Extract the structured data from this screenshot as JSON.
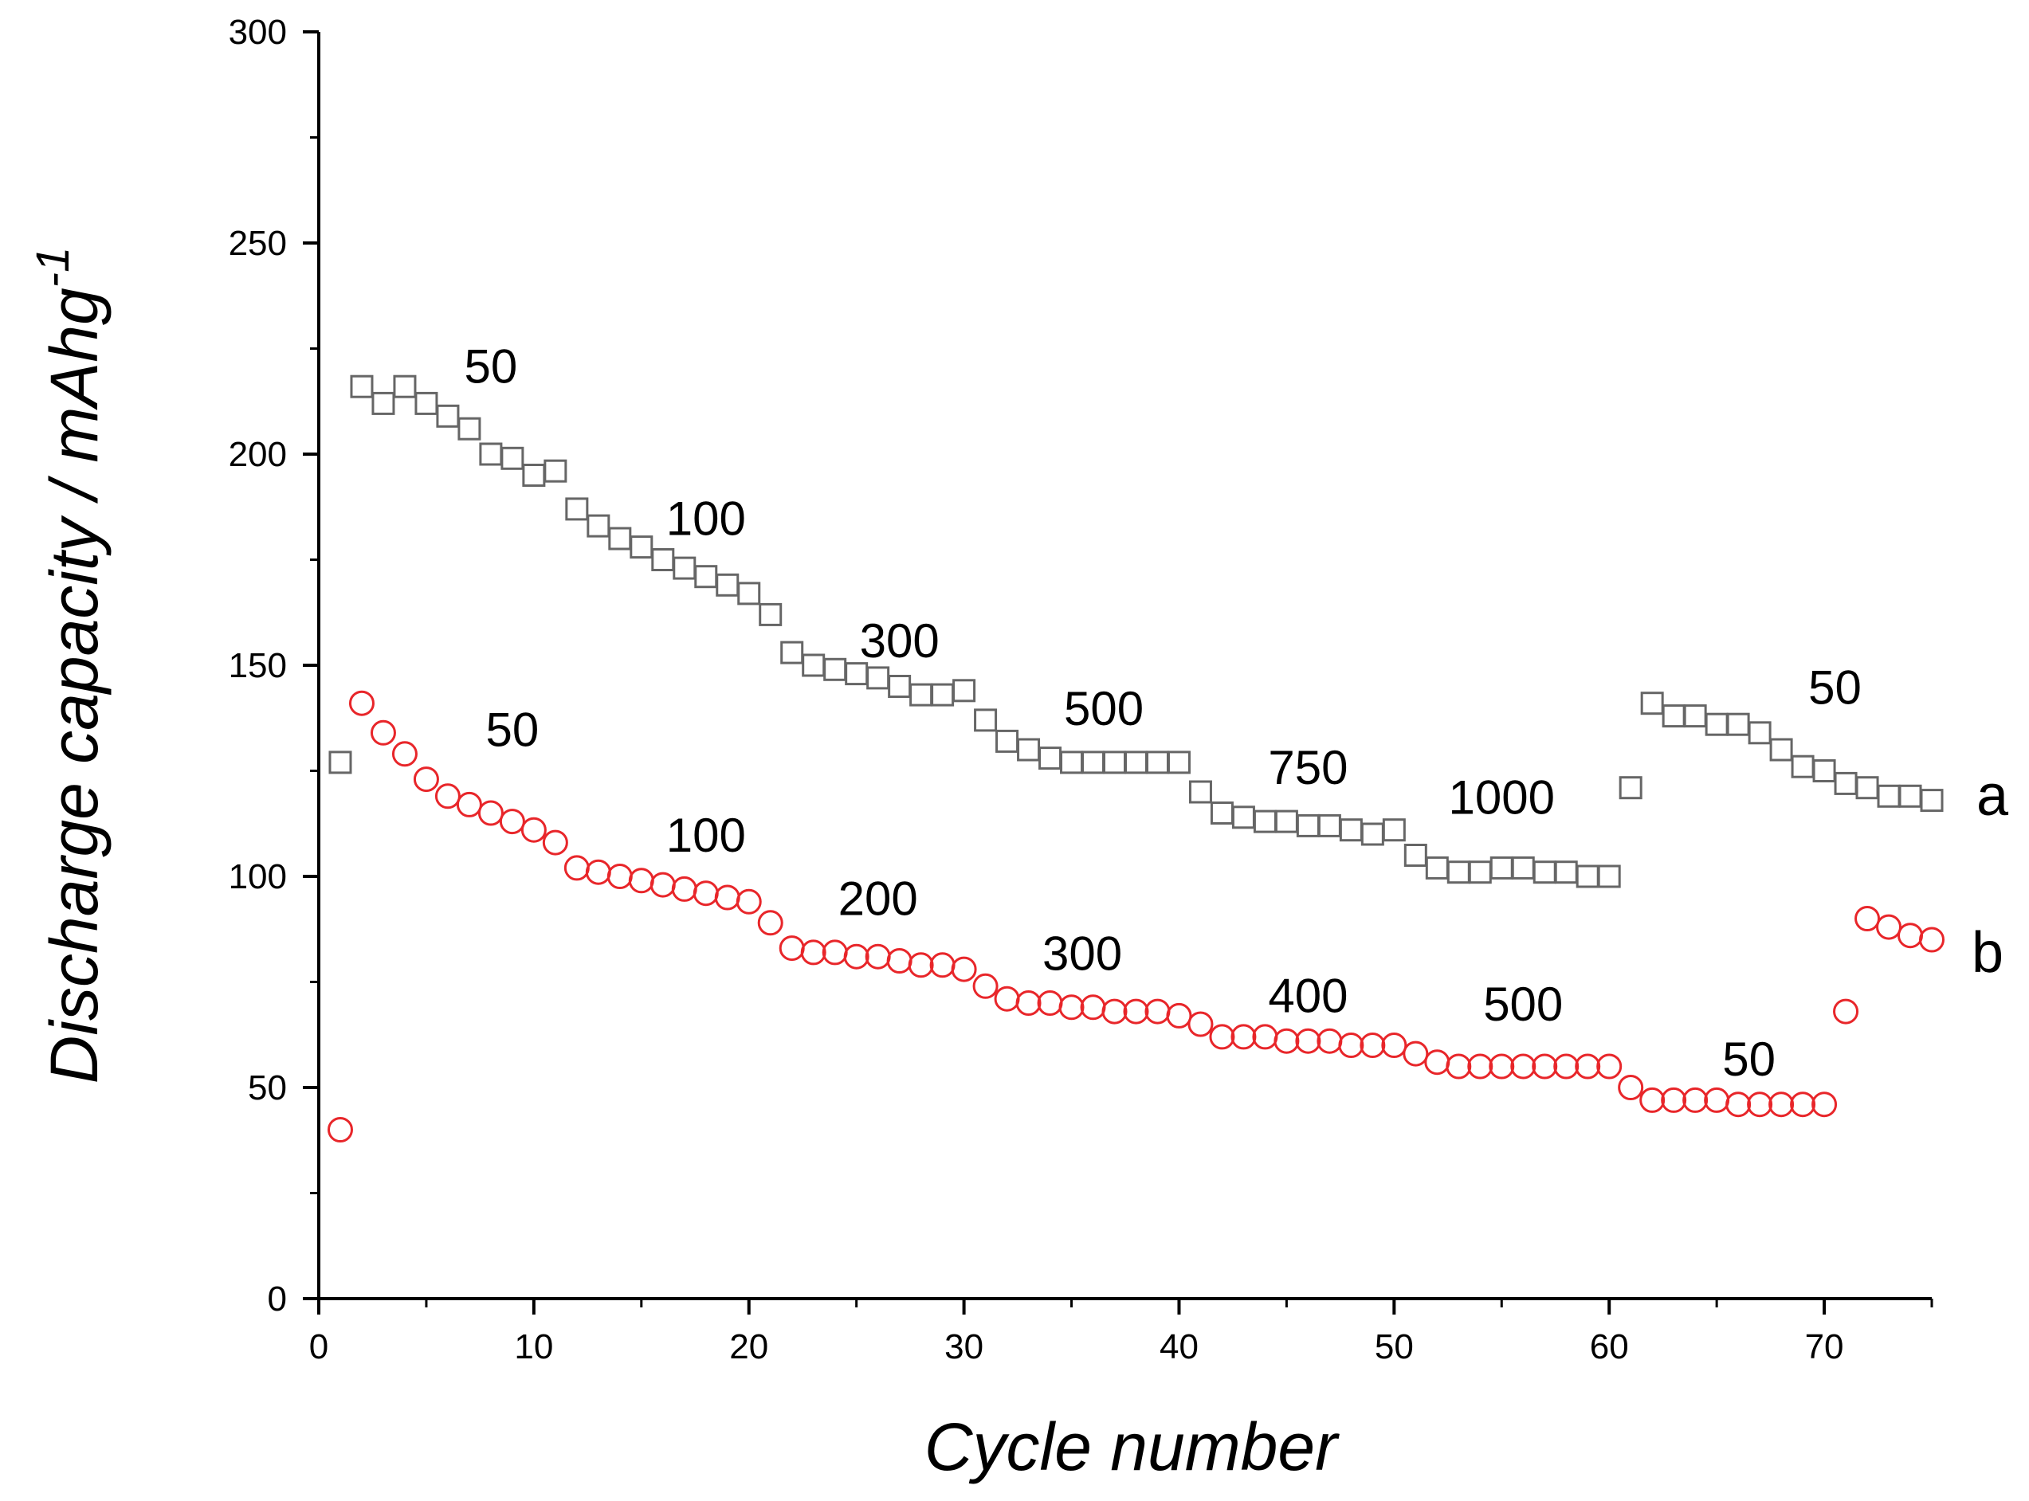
{
  "chart_data": {
    "type": "scatter",
    "xlabel": "Cycle number",
    "ylabel": "Discharge capacity / mAhg",
    "ylabel_superscript": "-1",
    "xlim": [
      0,
      75
    ],
    "ylim": [
      0,
      300
    ],
    "xticks": [
      0,
      10,
      20,
      30,
      40,
      50,
      60,
      70
    ],
    "yticks": [
      0,
      50,
      100,
      150,
      200,
      250,
      300
    ],
    "grid": false,
    "series": [
      {
        "name": "a",
        "marker": "square",
        "color": "#666666",
        "x": [
          1,
          2,
          3,
          4,
          5,
          6,
          7,
          8,
          9,
          10,
          11,
          12,
          13,
          14,
          15,
          16,
          17,
          18,
          19,
          20,
          21,
          22,
          23,
          24,
          25,
          26,
          27,
          28,
          29,
          30,
          31,
          32,
          33,
          34,
          35,
          36,
          37,
          38,
          39,
          40,
          41,
          42,
          43,
          44,
          45,
          46,
          47,
          48,
          49,
          50,
          51,
          52,
          53,
          54,
          55,
          56,
          57,
          58,
          59,
          60,
          61,
          62,
          63,
          64,
          65,
          66,
          67,
          68,
          69,
          70,
          71,
          72,
          73,
          74,
          75
        ],
        "values": [
          127,
          216,
          212,
          216,
          212,
          209,
          206,
          200,
          199,
          195,
          196,
          187,
          183,
          180,
          178,
          175,
          173,
          171,
          169,
          167,
          162,
          153,
          150,
          149,
          148,
          147,
          145,
          143,
          143,
          144,
          137,
          132,
          130,
          128,
          127,
          127,
          127,
          127,
          127,
          127,
          120,
          115,
          114,
          113,
          113,
          112,
          112,
          111,
          110,
          111,
          105,
          102,
          101,
          101,
          102,
          102,
          101,
          101,
          100,
          100,
          121,
          141,
          138,
          138,
          136,
          136,
          134,
          130,
          126,
          125,
          122,
          121,
          119,
          119,
          118
        ]
      },
      {
        "name": "b",
        "marker": "circle",
        "color": "#e8262a",
        "x": [
          1,
          2,
          3,
          4,
          5,
          6,
          7,
          8,
          9,
          10,
          11,
          12,
          13,
          14,
          15,
          16,
          17,
          18,
          19,
          20,
          21,
          22,
          23,
          24,
          25,
          26,
          27,
          28,
          29,
          30,
          31,
          32,
          33,
          34,
          35,
          36,
          37,
          38,
          39,
          40,
          41,
          42,
          43,
          44,
          45,
          46,
          47,
          48,
          49,
          50,
          51,
          52,
          53,
          54,
          55,
          56,
          57,
          58,
          59,
          60,
          61,
          62,
          63,
          64,
          65,
          66,
          67,
          68,
          69,
          70,
          71,
          72,
          73,
          74,
          75
        ],
        "values": [
          40,
          141,
          134,
          129,
          123,
          119,
          117,
          115,
          113,
          111,
          108,
          102,
          101,
          100,
          99,
          98,
          97,
          96,
          95,
          94,
          89,
          83,
          82,
          82,
          81,
          81,
          80,
          79,
          79,
          78,
          74,
          71,
          70,
          70,
          69,
          69,
          68,
          68,
          68,
          67,
          65,
          62,
          62,
          62,
          61,
          61,
          61,
          60,
          60,
          60,
          58,
          56,
          55,
          55,
          55,
          55,
          55,
          55,
          55,
          55,
          50,
          47,
          47,
          47,
          47,
          46,
          46,
          46,
          46,
          46,
          68,
          90,
          88,
          86,
          85
        ]
      }
    ],
    "annotations": [
      {
        "text": "50",
        "series": "a",
        "x": 8,
        "y": 221
      },
      {
        "text": "100",
        "series": "a",
        "x": 18,
        "y": 185
      },
      {
        "text": "300",
        "series": "a",
        "x": 27,
        "y": 156
      },
      {
        "text": "500",
        "series": "a",
        "x": 36.5,
        "y": 140
      },
      {
        "text": "750",
        "series": "a",
        "x": 46,
        "y": 126
      },
      {
        "text": "1000",
        "series": "a",
        "x": 55,
        "y": 119
      },
      {
        "text": "50",
        "series": "a",
        "x": 70.5,
        "y": 145
      },
      {
        "text": "50",
        "series": "b",
        "x": 9,
        "y": 135
      },
      {
        "text": "100",
        "series": "b",
        "x": 18,
        "y": 110
      },
      {
        "text": "200",
        "series": "b",
        "x": 26,
        "y": 95
      },
      {
        "text": "300",
        "series": "b",
        "x": 35.5,
        "y": 82
      },
      {
        "text": "400",
        "series": "b",
        "x": 46,
        "y": 72
      },
      {
        "text": "500",
        "series": "b",
        "x": 56,
        "y": 70
      },
      {
        "text": "50",
        "series": "b",
        "x": 66.5,
        "y": 57
      }
    ],
    "series_labels": [
      {
        "text": "a",
        "series": "a"
      },
      {
        "text": "b",
        "series": "b"
      }
    ]
  }
}
